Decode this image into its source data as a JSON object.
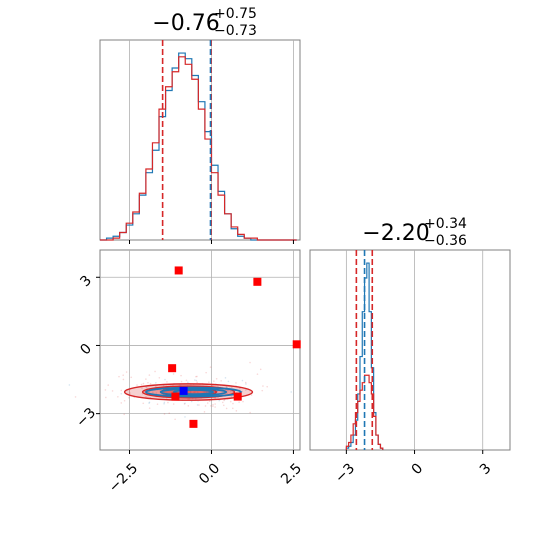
{
  "colors": {
    "blue": "#1f77b4",
    "red": "#d62728",
    "marker_red": "#ff0000",
    "marker_blue": "#0000ff",
    "grid": "#b0b0b0",
    "frame": "#808080"
  },
  "chart_data": [
    {
      "type": "histogram",
      "panel": "top-left",
      "parameter_index": 0,
      "title": {
        "value": "−0.76",
        "upper": "+0.75",
        "lower": "−0.73"
      },
      "xlim": [
        -3.4,
        2.7
      ],
      "quantile_lines": {
        "red": [
          -1.49,
          -0.01
        ],
        "blue": [
          -0.03
        ]
      },
      "series": [
        {
          "color": "blue",
          "bin_edges": [
            -3.4,
            -3.2,
            -3.0,
            -2.8,
            -2.6,
            -2.4,
            -2.2,
            -2.0,
            -1.8,
            -1.6,
            -1.4,
            -1.2,
            -1.0,
            -0.8,
            -0.6,
            -0.4,
            -0.2,
            0.0,
            0.2,
            0.4,
            0.6,
            0.8,
            1.0,
            1.2,
            1.4,
            1.6,
            1.8,
            2.0,
            2.2,
            2.4,
            2.6
          ],
          "counts": [
            0,
            1,
            2,
            4,
            8,
            14,
            24,
            36,
            48,
            66,
            80,
            92,
            100,
            97,
            88,
            74,
            58,
            40,
            26,
            14,
            6,
            2,
            1,
            0,
            0,
            0,
            0,
            0,
            0,
            0
          ]
        },
        {
          "color": "red",
          "bin_edges": [
            -3.4,
            -3.2,
            -3.0,
            -2.8,
            -2.6,
            -2.4,
            -2.2,
            -2.0,
            -1.8,
            -1.6,
            -1.4,
            -1.2,
            -1.0,
            -0.8,
            -0.6,
            -0.4,
            -0.2,
            0.0,
            0.2,
            0.4,
            0.6,
            0.8,
            1.0,
            1.2,
            1.4,
            1.6,
            1.8,
            2.0,
            2.2,
            2.4,
            2.6
          ],
          "counts": [
            0,
            0,
            1,
            4,
            9,
            15,
            25,
            38,
            52,
            70,
            82,
            90,
            98,
            94,
            86,
            70,
            54,
            36,
            24,
            14,
            7,
            3,
            1,
            1,
            0,
            0,
            0,
            0,
            0,
            0
          ]
        }
      ]
    },
    {
      "type": "contour",
      "panel": "bottom-left",
      "xlim": [
        -3.4,
        2.7
      ],
      "ylim": [
        -4.6,
        4.2
      ],
      "x_ticks": [
        "−2.5",
        "0.0",
        "2.5"
      ],
      "x_tick_values": [
        -2.5,
        0.0,
        2.5
      ],
      "y_ticks": [
        "−3",
        "0",
        "3"
      ],
      "y_tick_values": [
        -3,
        0,
        3
      ],
      "contours": [
        {
          "color": "red",
          "center": [
            -0.7,
            -2.05
          ],
          "levels": [
            [
              1.95,
              0.36
            ],
            [
              1.4,
              0.26
            ],
            [
              0.85,
              0.17
            ]
          ]
        },
        {
          "color": "blue",
          "center": [
            -0.55,
            -2.05
          ],
          "levels": [
            [
              1.45,
              0.2
            ],
            [
              1.0,
              0.14
            ],
            [
              0.6,
              0.09
            ]
          ]
        }
      ],
      "markers_red": [
        [
          -1.0,
          3.3
        ],
        [
          1.4,
          2.8
        ],
        [
          2.6,
          0.05
        ],
        [
          -1.2,
          -1.0
        ],
        [
          -1.1,
          -2.25
        ],
        [
          0.8,
          -2.25
        ],
        [
          -0.55,
          -3.45
        ]
      ],
      "markers_blue": [
        [
          -0.85,
          -2.0
        ]
      ]
    },
    {
      "type": "histogram",
      "panel": "bottom-right",
      "parameter_index": 1,
      "title": {
        "value": "−2.20",
        "upper": "+0.34",
        "lower": "−0.36"
      },
      "xlim": [
        -4.6,
        4.2
      ],
      "x_ticks": [
        "−3",
        "0",
        "3"
      ],
      "x_tick_values": [
        -3,
        0,
        3
      ],
      "quantile_lines": {
        "red": [
          -2.56,
          -1.86
        ],
        "blue": [
          -2.2
        ]
      },
      "series": [
        {
          "color": "blue",
          "bin_edges": [
            -3.0,
            -2.9,
            -2.8,
            -2.7,
            -2.6,
            -2.5,
            -2.4,
            -2.3,
            -2.2,
            -2.1,
            -2.0,
            -1.9,
            -1.8,
            -1.7,
            -1.6,
            -1.5,
            -1.4
          ],
          "counts": [
            1,
            2,
            4,
            8,
            16,
            30,
            50,
            74,
            92,
            100,
            74,
            44,
            20,
            8,
            3,
            1
          ]
        },
        {
          "color": "red",
          "bin_edges": [
            -3.0,
            -2.9,
            -2.8,
            -2.7,
            -2.6,
            -2.5,
            -2.4,
            -2.3,
            -2.2,
            -2.1,
            -2.0,
            -1.9,
            -1.8,
            -1.7,
            -1.6,
            -1.5,
            -1.4
          ],
          "counts": [
            2,
            4,
            8,
            14,
            20,
            26,
            32,
            36,
            40,
            40,
            36,
            30,
            18,
            8,
            3,
            1
          ]
        }
      ]
    }
  ]
}
